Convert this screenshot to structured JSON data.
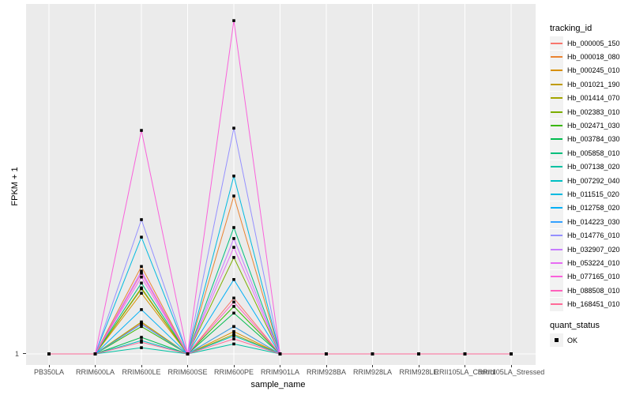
{
  "figure": {
    "background": "#ffffff",
    "panel_bg": "#EBEBEB",
    "gridline_color": "#ffffff",
    "tick_mark_color": "#333333",
    "tick_label_color": "#4d4d4d",
    "axis_title_color": "#000000"
  },
  "chart_data": {
    "type": "line",
    "title": "",
    "xlabel": "sample_name",
    "ylabel": "FPKM + 1",
    "y_scale": "log10",
    "ylim": [
      1,
      2000
    ],
    "y_tick_labels": [
      "1"
    ],
    "y_tick_values": [
      1
    ],
    "grid": true,
    "legend_position": "right",
    "point_shape": "filled-square",
    "point_color": "#000000",
    "categories": [
      "PB350LA",
      "RRIM600LA",
      "RRIM600LE",
      "RRIM600SE",
      "RRIM600PE",
      "RRIM901LA",
      "RRIM928BA",
      "RRIM928LA",
      "RRIM928LE",
      "RRII105LA_Control",
      "RRII105LA_Stressed"
    ],
    "series": [
      {
        "name": "Hb_000005_150",
        "color": "#F8766D",
        "values": [
          1,
          1,
          2.0,
          1,
          3.5,
          1,
          1,
          1,
          1,
          1,
          1
        ]
      },
      {
        "name": "Hb_000018_080",
        "color": "#EA8331",
        "values": [
          1,
          1,
          7.1,
          1,
          34.5,
          1,
          1,
          1,
          1,
          1,
          1
        ]
      },
      {
        "name": "Hb_000245_010",
        "color": "#D89000",
        "values": [
          1,
          1,
          3.9,
          1,
          1.65,
          1,
          1,
          1,
          1,
          1,
          1
        ]
      },
      {
        "name": "Hb_001021_190",
        "color": "#C09B00",
        "values": [
          1,
          1,
          4.4,
          1,
          1.85,
          1,
          1,
          1,
          1,
          1,
          1
        ]
      },
      {
        "name": "Hb_001414_070",
        "color": "#A3A500",
        "values": [
          1,
          1,
          2.05,
          1,
          1.55,
          1,
          1,
          1,
          1,
          1,
          1
        ]
      },
      {
        "name": "Hb_002383_010",
        "color": "#7CAE00",
        "values": [
          1,
          1,
          4.3,
          1,
          8.7,
          1,
          1,
          1,
          1,
          1,
          1
        ]
      },
      {
        "name": "Hb_002471_030",
        "color": "#39B600",
        "values": [
          1,
          1,
          1.85,
          1,
          2.9,
          1,
          1,
          1,
          1,
          1,
          1
        ]
      },
      {
        "name": "Hb_003784_030",
        "color": "#00BB4E",
        "values": [
          1,
          1,
          1.45,
          1,
          2.5,
          1,
          1,
          1,
          1,
          1,
          1
        ]
      },
      {
        "name": "Hb_005858_010",
        "color": "#00BF7D",
        "values": [
          1,
          1,
          4.9,
          1,
          17.0,
          1,
          1,
          1,
          1,
          1,
          1
        ]
      },
      {
        "name": "Hb_007138_020",
        "color": "#00C1A3",
        "values": [
          1,
          1,
          1.15,
          1,
          1.25,
          1,
          1,
          1,
          1,
          1,
          1
        ]
      },
      {
        "name": "Hb_007292_040",
        "color": "#00BFC4",
        "values": [
          1,
          1,
          1.35,
          1,
          1.5,
          1,
          1,
          1,
          1,
          1,
          1
        ]
      },
      {
        "name": "Hb_011515_020",
        "color": "#00BAE0",
        "values": [
          1,
          1,
          13.7,
          1,
          54.0,
          1,
          1,
          1,
          1,
          1,
          1
        ]
      },
      {
        "name": "Hb_012758_020",
        "color": "#00B0F6",
        "values": [
          1,
          1,
          2.7,
          1,
          5.3,
          1,
          1,
          1,
          1,
          1,
          1
        ]
      },
      {
        "name": "Hb_014223_030",
        "color": "#35A2FF",
        "values": [
          1,
          1,
          1.95,
          1,
          1.85,
          1,
          1,
          1,
          1,
          1,
          1
        ]
      },
      {
        "name": "Hb_014776_010",
        "color": "#9590FF",
        "values": [
          1,
          1,
          20.3,
          1,
          158.0,
          1,
          1,
          1,
          1,
          1,
          1
        ]
      },
      {
        "name": "Hb_032907_020",
        "color": "#C77CFF",
        "values": [
          1,
          1,
          6.4,
          1,
          13.3,
          1,
          1,
          1,
          1,
          1,
          1
        ]
      },
      {
        "name": "Hb_053224_010",
        "color": "#E76BF3",
        "values": [
          1,
          1,
          5.6,
          1,
          10.9,
          1,
          1,
          1,
          1,
          1,
          1
        ]
      },
      {
        "name": "Hb_077165_010",
        "color": "#FA62DB",
        "values": [
          1,
          1,
          150.0,
          1,
          1760.0,
          1,
          1,
          1,
          1,
          1,
          1
        ]
      },
      {
        "name": "Hb_088508_010",
        "color": "#FF62BC",
        "values": [
          1,
          1,
          6.1,
          1,
          3.2,
          1,
          1,
          1,
          1,
          1,
          1
        ]
      },
      {
        "name": "Hb_168451_010",
        "color": "#FF6A98",
        "values": [
          1,
          1,
          1.3,
          1,
          1.4,
          1,
          1,
          1,
          1,
          1,
          1
        ]
      }
    ],
    "legend": {
      "color_title": "tracking_id",
      "shape_title": "quant_status",
      "shape_items": [
        {
          "label": "OK",
          "shape": "filled-square"
        }
      ]
    }
  }
}
